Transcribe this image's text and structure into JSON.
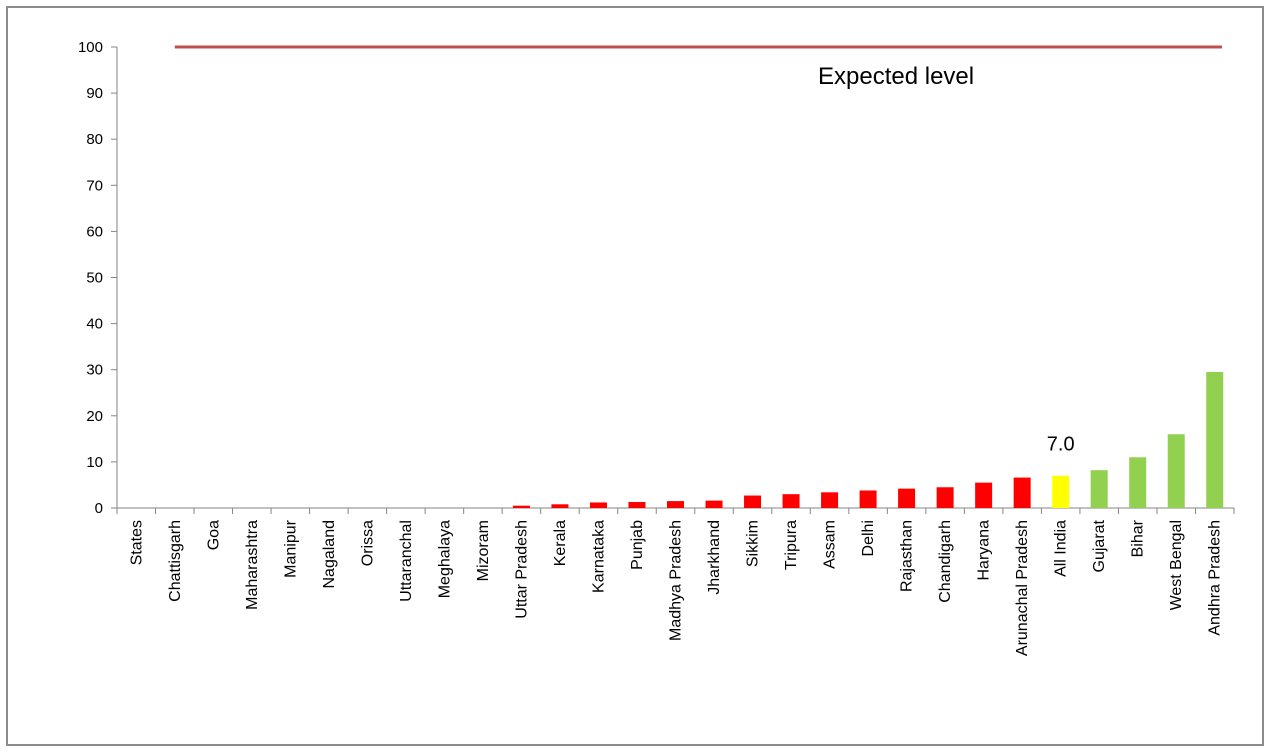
{
  "chart_data": {
    "type": "bar",
    "title": "",
    "xlabel": "",
    "ylabel": "",
    "ylim": [
      0,
      100
    ],
    "yticks": [
      0,
      10,
      20,
      30,
      40,
      50,
      60,
      70,
      80,
      90,
      100
    ],
    "categories": [
      "States",
      "Chattisgarh",
      "Goa",
      "Maharashtra",
      "Manipur",
      "Nagaland",
      "Orissa",
      "Uttaranchal",
      "Meghalaya",
      "Mizoram",
      "Uttar Pradesh",
      "Kerala",
      "Karnataka",
      "Punjab",
      "Madhya Pradesh",
      "Jharkhand",
      "Sikkim",
      "Tripura",
      "Assam",
      "Delhi",
      "Rajasthan",
      "Chandigarh",
      "Haryana",
      "Arunachal Pradesh",
      "All India",
      "Gujarat",
      "Bihar",
      "West Bengal",
      "Andhra Pradesh"
    ],
    "values": [
      0,
      0,
      0,
      0,
      0,
      0,
      0,
      0,
      0,
      0,
      0.5,
      0.8,
      1.2,
      1.3,
      1.5,
      1.6,
      2.7,
      3.0,
      3.4,
      3.8,
      4.2,
      4.5,
      5.5,
      6.6,
      7.0,
      8.2,
      11.0,
      16.0,
      29.5
    ],
    "bar_colors": [
      "#ff0000",
      "#ff0000",
      "#ff0000",
      "#ff0000",
      "#ff0000",
      "#ff0000",
      "#ff0000",
      "#ff0000",
      "#ff0000",
      "#ff0000",
      "#ff0000",
      "#ff0000",
      "#ff0000",
      "#ff0000",
      "#ff0000",
      "#ff0000",
      "#ff0000",
      "#ff0000",
      "#ff0000",
      "#ff0000",
      "#ff0000",
      "#ff0000",
      "#ff0000",
      "#ff0000",
      "#ffff00",
      "#92d050",
      "#92d050",
      "#92d050",
      "#92d050"
    ],
    "reference_line": {
      "value": 100,
      "label": "Expected level",
      "color": "#c0504d"
    },
    "data_labels": [
      {
        "category": "All India",
        "text": "7.0"
      }
    ],
    "grid": false,
    "legend": "none"
  }
}
